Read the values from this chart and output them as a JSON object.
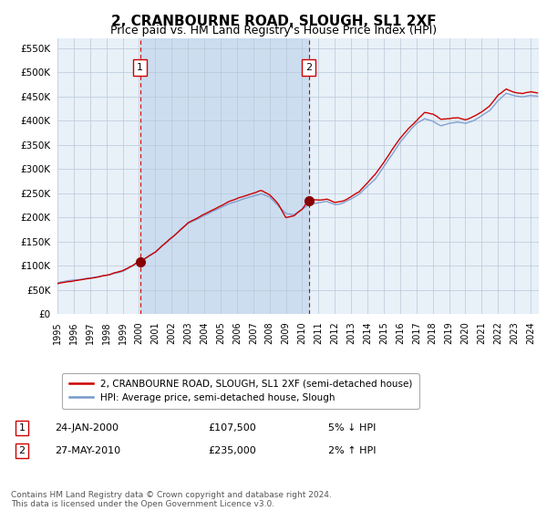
{
  "title": "2, CRANBOURNE ROAD, SLOUGH, SL1 2XF",
  "subtitle": "Price paid vs. HM Land Registry's House Price Index (HPI)",
  "title_fontsize": 11,
  "subtitle_fontsize": 9,
  "background_color": "#ffffff",
  "plot_bg_color": "#e8f0f8",
  "shade_color": "#ccddf0",
  "ylim": [
    0,
    570000
  ],
  "yticks": [
    0,
    50000,
    100000,
    150000,
    200000,
    250000,
    300000,
    350000,
    400000,
    450000,
    500000,
    550000
  ],
  "ytick_labels": [
    "£0",
    "£50K",
    "£100K",
    "£150K",
    "£200K",
    "£250K",
    "£300K",
    "£350K",
    "£400K",
    "£450K",
    "£500K",
    "£550K"
  ],
  "sale1_date_num": 2000.07,
  "sale1_price": 107500,
  "sale1_label": "1",
  "sale1_date_str": "24-JAN-2000",
  "sale1_amount_str": "£107,500",
  "sale1_hpi_str": "5% ↓ HPI",
  "sale2_date_num": 2010.41,
  "sale2_price": 235000,
  "sale2_label": "2",
  "sale2_date_str": "27-MAY-2010",
  "sale2_amount_str": "£235,000",
  "sale2_hpi_str": "2% ↑ HPI",
  "shade_start": 2000.07,
  "shade_end": 2010.41,
  "hpi_line_color": "#7799cc",
  "price_line_color": "#cc0000",
  "sale_dot_color": "#880000",
  "vline_color": "#cc0000",
  "legend_label_red": "2, CRANBOURNE ROAD, SLOUGH, SL1 2XF (semi-detached house)",
  "legend_label_blue": "HPI: Average price, semi-detached house, Slough",
  "footnote": "Contains HM Land Registry data © Crown copyright and database right 2024.\nThis data is licensed under the Open Government Licence v3.0.",
  "xmin": 1995.0,
  "xmax": 2024.5,
  "xtick_years": [
    1995,
    1996,
    1997,
    1998,
    1999,
    2000,
    2001,
    2002,
    2003,
    2004,
    2005,
    2006,
    2007,
    2008,
    2009,
    2010,
    2011,
    2012,
    2013,
    2014,
    2015,
    2016,
    2017,
    2018,
    2019,
    2020,
    2021,
    2022,
    2023,
    2024
  ]
}
